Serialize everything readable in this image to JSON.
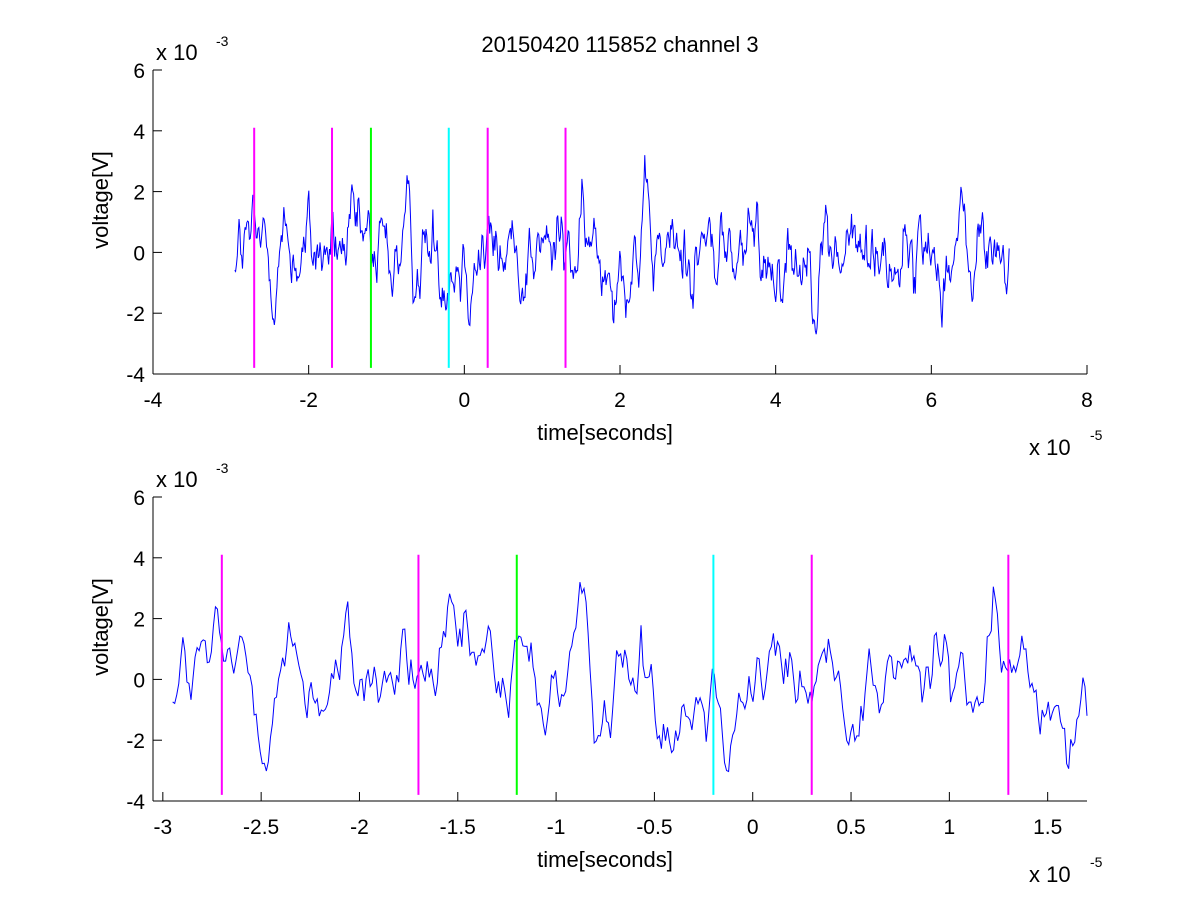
{
  "figure": {
    "title": "20150420 115852 channel 3"
  },
  "chart_data": [
    {
      "type": "line",
      "title": "20150420 115852 channel 3",
      "xlabel": "time[seconds]",
      "ylabel": "voltage[V]",
      "x_exponent_label": "x 10",
      "x_exponent": "-5",
      "y_exponent_label": "x 10",
      "y_exponent": "-3",
      "xlim": [
        -4,
        8
      ],
      "ylim": [
        -4,
        6
      ],
      "xticks": [
        "-4",
        "-2",
        "0",
        "2",
        "4",
        "6",
        "8"
      ],
      "yticks": [
        "-4",
        "-2",
        "0",
        "2",
        "4",
        "6"
      ],
      "grid": false,
      "series": [
        {
          "color": "#0000ff",
          "x_range": [
            -2.95,
            7.0
          ],
          "samples": 900,
          "y_range_approx": [
            -3.5,
            3.6
          ],
          "note_values": "dense noise signal around 0 with amplitude about ±2 (units x 10^-3 V)"
        }
      ],
      "markers": [
        {
          "x": -2.7,
          "color": "#ff00ff",
          "ymin": -3.8,
          "ymax": 4.1
        },
        {
          "x": -1.7,
          "color": "#ff00ff",
          "ymin": -3.8,
          "ymax": 4.1
        },
        {
          "x": -1.2,
          "color": "#00ff00",
          "ymin": -3.8,
          "ymax": 4.1
        },
        {
          "x": -0.2,
          "color": "#00ffff",
          "ymin": -3.8,
          "ymax": 4.1
        },
        {
          "x": 0.3,
          "color": "#ff00ff",
          "ymin": -3.8,
          "ymax": 4.1
        },
        {
          "x": 1.3,
          "color": "#ff00ff",
          "ymin": -3.8,
          "ymax": 4.1
        }
      ]
    },
    {
      "type": "line",
      "title": "",
      "xlabel": "time[seconds]",
      "ylabel": "voltage[V]",
      "x_exponent_label": "x 10",
      "x_exponent": "-5",
      "y_exponent_label": "x 10",
      "y_exponent": "-3",
      "xlim": [
        -3.05,
        1.7
      ],
      "ylim": [
        -4,
        6
      ],
      "xticks": [
        "-3",
        "-2.5",
        "-2",
        "-1.5",
        "-1",
        "-0.5",
        "0",
        "0.5",
        "1",
        "1.5"
      ],
      "yticks": [
        "-4",
        "-2",
        "0",
        "2",
        "4",
        "6"
      ],
      "grid": false,
      "series": [
        {
          "color": "#0000ff",
          "x_range": [
            -2.95,
            1.7
          ],
          "samples": 450,
          "y_range_approx": [
            -2.6,
            3.7
          ],
          "note_values": "zoomed view of the same noise signal"
        }
      ],
      "markers": [
        {
          "x": -2.7,
          "color": "#ff00ff",
          "ymin": -3.8,
          "ymax": 4.1
        },
        {
          "x": -1.7,
          "color": "#ff00ff",
          "ymin": -3.8,
          "ymax": 4.1
        },
        {
          "x": -1.2,
          "color": "#00ff00",
          "ymin": -3.8,
          "ymax": 4.1
        },
        {
          "x": -0.2,
          "color": "#00ffff",
          "ymin": -3.8,
          "ymax": 4.1
        },
        {
          "x": 0.3,
          "color": "#ff00ff",
          "ymin": -3.8,
          "ymax": 4.1
        },
        {
          "x": 1.3,
          "color": "#ff00ff",
          "ymin": -3.8,
          "ymax": 4.1
        }
      ]
    }
  ]
}
